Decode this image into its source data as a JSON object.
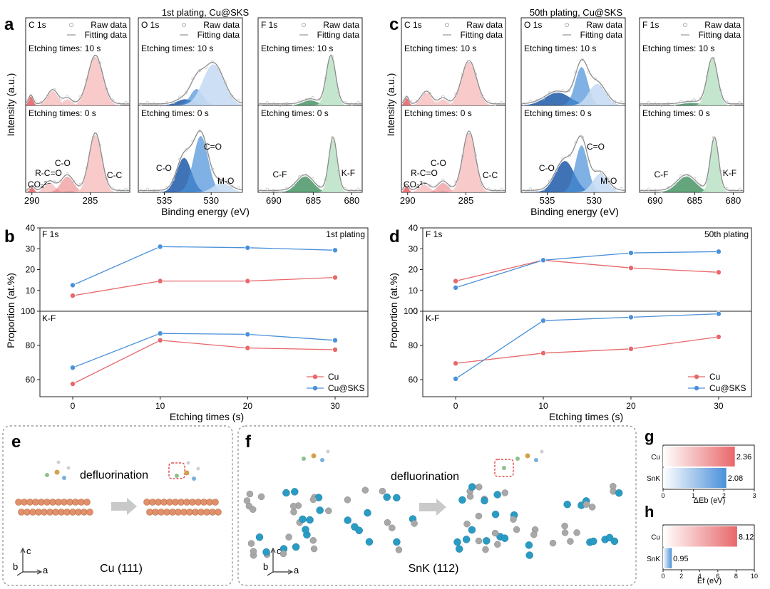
{
  "panel_letters": {
    "a": "a",
    "b": "b",
    "c": "c",
    "d": "d",
    "e": "e",
    "f": "f",
    "g": "g",
    "h": "h"
  },
  "colors": {
    "red": "#e8676a",
    "red_light": "#f7c5c4",
    "blue": "#4a90d9",
    "blue_dark": "#1f5aa8",
    "blue_light": "#c6dcf3",
    "green": "#3d8f5c",
    "green_light": "#bfe3c9",
    "grey": "#888888"
  },
  "xps_common": {
    "ylabel": "Intensity (a.u.)",
    "xlabel": "Binding energy (eV)",
    "legend_raw": "Raw data",
    "legend_fit": "Fitting data",
    "etch_top": "Etching times: 10 s",
    "etch_bottom": "Etching times: 0 s",
    "core": {
      "c": "C 1s",
      "o": "O 1s",
      "f": "F 1s"
    },
    "ticks_c": [
      "290",
      "285"
    ],
    "ticks_o": [
      "535",
      "530"
    ],
    "ticks_f": [
      "690",
      "685",
      "680"
    ]
  },
  "xps_a": {
    "title": "1st plating, Cu@SKS"
  },
  "xps_c": {
    "title": "50th plating, Cu@SKS"
  },
  "peak_labels": {
    "co3": "CO₃²⁻",
    "rco": "R-C=O",
    "c_o": "C-O",
    "c_c": "C-C",
    "c_eq_o": "C=O",
    "m_o": "M-O",
    "c_f": "C-F",
    "k_f": "K-F"
  },
  "chart_data": [
    {
      "type": "line",
      "panel": "b",
      "title": "1st plating",
      "xlabel": "Etching times (s)",
      "ylabel": "Proportion (at.%)",
      "x": [
        0,
        10,
        20,
        30
      ],
      "x_ticks": [
        "0",
        "10",
        "20",
        "30"
      ],
      "subplots": [
        {
          "label": "F 1s",
          "ylim": [
            0,
            40
          ],
          "y_ticks": [
            "0",
            "10",
            "20",
            "30",
            "40"
          ],
          "series": [
            {
              "name": "Cu",
              "values": [
                7.5,
                14.5,
                14.5,
                16.2
              ]
            },
            {
              "name": "Cu@SKS",
              "values": [
                12.5,
                31,
                30.5,
                29.3
              ]
            }
          ]
        },
        {
          "label": "K-F",
          "ylim": [
            50,
            100
          ],
          "y_ticks": [
            "60",
            "80",
            "100"
          ],
          "series": [
            {
              "name": "Cu",
              "values": [
                57.5,
                83,
                78.5,
                77.5
              ]
            },
            {
              "name": "Cu@SKS",
              "values": [
                67,
                87,
                86.5,
                83
              ]
            }
          ]
        }
      ],
      "legend": [
        "Cu",
        "Cu@SKS"
      ]
    },
    {
      "type": "line",
      "panel": "d",
      "title": "50th plating",
      "xlabel": "Etching times (s)",
      "ylabel": "Proportion (at.%)",
      "x": [
        0,
        10,
        20,
        30
      ],
      "x_ticks": [
        "0",
        "10",
        "20",
        "30"
      ],
      "subplots": [
        {
          "label": "F 1s",
          "ylim": [
            0,
            40
          ],
          "y_ticks": [
            "0",
            "10",
            "20",
            "30",
            "40"
          ],
          "series": [
            {
              "name": "Cu",
              "values": [
                14.5,
                24.5,
                20.8,
                18.7
              ]
            },
            {
              "name": "Cu@SKS",
              "values": [
                11.3,
                24.5,
                28,
                28.6
              ]
            }
          ]
        },
        {
          "label": "K-F",
          "ylim": [
            50,
            100
          ],
          "y_ticks": [
            "60",
            "80",
            "100"
          ],
          "series": [
            {
              "name": "Cu",
              "values": [
                69.5,
                75.5,
                78,
                85
              ]
            },
            {
              "name": "Cu@SKS",
              "values": [
                60.5,
                94.5,
                96.5,
                98.5
              ]
            }
          ]
        }
      ],
      "legend": [
        "Cu",
        "Cu@SKS"
      ]
    },
    {
      "type": "bar",
      "panel": "g",
      "orientation": "horizontal",
      "categories": [
        "Cu",
        "SnK"
      ],
      "values": [
        2.36,
        2.08
      ],
      "value_labels": [
        "2.36",
        "2.08"
      ],
      "xlabel": "ΔEb (eV)",
      "xlim": [
        0,
        3
      ],
      "x_ticks": [
        "0",
        "1",
        "2",
        "3"
      ]
    },
    {
      "type": "bar",
      "panel": "h",
      "orientation": "horizontal",
      "categories": [
        "Cu",
        "SnK"
      ],
      "values": [
        8.12,
        0.95
      ],
      "value_labels": [
        "8.12",
        "0.95"
      ],
      "xlabel": "Ef (eV)",
      "xlim": [
        0,
        10
      ],
      "x_ticks": [
        "0",
        "2",
        "4",
        "6",
        "8",
        "10"
      ]
    }
  ],
  "structure_e": {
    "process": "defluorination",
    "surface": "Cu (111)",
    "axis_c": "c",
    "axis_b": "b",
    "axis_a": "a"
  },
  "structure_f": {
    "process": "defluorination",
    "surface": "SnK (112)",
    "axis_c": "c",
    "axis_b": "b",
    "axis_a": "a"
  }
}
